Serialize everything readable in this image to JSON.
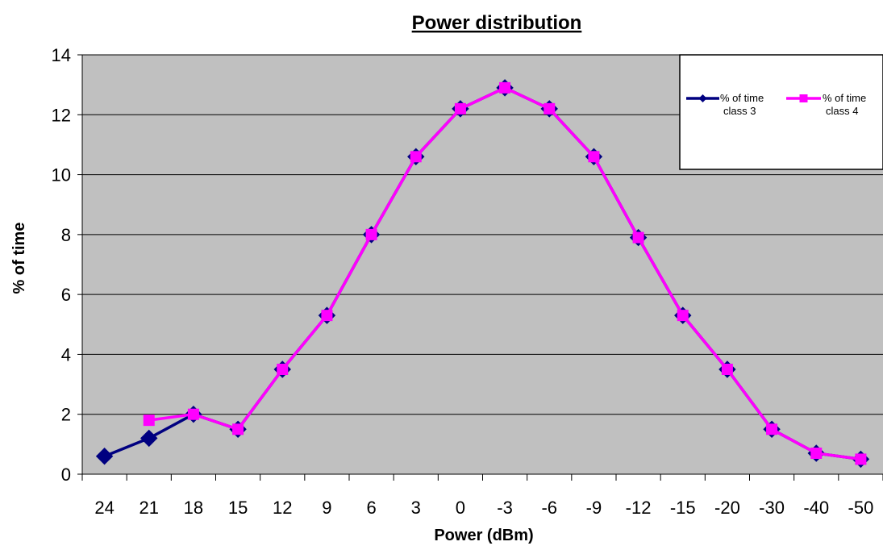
{
  "chart_data": {
    "type": "line",
    "title": "Power distribution",
    "xlabel": "Power (dBm)",
    "ylabel": "% of time",
    "categories": [
      "24",
      "21",
      "18",
      "15",
      "12",
      "9",
      "6",
      "3",
      "0",
      "-3",
      "-6",
      "-9",
      "-12",
      "-15",
      "-20",
      "-30",
      "-40",
      "-50"
    ],
    "ylim": [
      0,
      14
    ],
    "yticks": [
      "0",
      "2",
      "4",
      "6",
      "8",
      "10",
      "12",
      "14"
    ],
    "grid": true,
    "legend_position": "top-right",
    "plot_background": "#c0c0c0",
    "series": [
      {
        "name": "% of time class 3",
        "legend_lines": [
          "% of time",
          "class 3"
        ],
        "color": "#000080",
        "marker": "diamond",
        "values": [
          0.6,
          1.2,
          2.0,
          1.5,
          3.5,
          5.3,
          8.0,
          10.6,
          12.2,
          12.9,
          12.2,
          10.6,
          7.9,
          5.3,
          3.5,
          1.5,
          0.7,
          0.5
        ]
      },
      {
        "name": "% of time class 4",
        "legend_lines": [
          "% of time",
          "class 4"
        ],
        "color": "#ff00ff",
        "marker": "square",
        "values": [
          null,
          1.8,
          2.0,
          1.5,
          3.5,
          5.3,
          8.0,
          10.6,
          12.2,
          12.9,
          12.2,
          10.6,
          7.9,
          5.3,
          3.5,
          1.5,
          0.7,
          0.5
        ]
      }
    ]
  }
}
